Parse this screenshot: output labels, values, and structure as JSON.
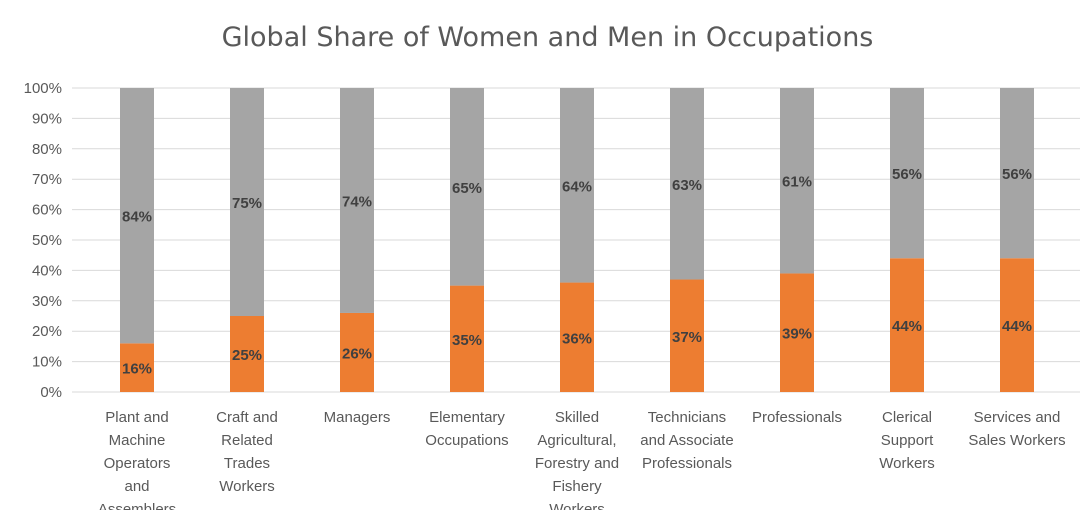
{
  "chart_data": {
    "type": "bar",
    "stacked": true,
    "title": "Global Share of Women and Men in Occupations",
    "ylim": [
      0,
      100
    ],
    "y_ticks": [
      "0%",
      "10%",
      "20%",
      "30%",
      "40%",
      "50%",
      "60%",
      "70%",
      "80%",
      "90%",
      "100%"
    ],
    "grid": true,
    "categories": [
      [
        "Plant and",
        "Machine",
        "Operators",
        "and",
        "Assemblers"
      ],
      [
        "Craft and",
        "Related",
        "Trades",
        "Workers"
      ],
      [
        "Managers"
      ],
      [
        "Elementary",
        "Occupations"
      ],
      [
        "Skilled",
        "Agricultural,",
        "Forestry and",
        "Fishery",
        "Workers"
      ],
      [
        "Technicians",
        "and Associate",
        "Professionals"
      ],
      [
        "Professionals"
      ],
      [
        "Clerical",
        "Support",
        "Workers"
      ],
      [
        "Services and",
        "Sales Workers"
      ]
    ],
    "series": [
      {
        "color": "#ed7d31",
        "values": [
          16,
          25,
          26,
          35,
          36,
          37,
          39,
          44,
          44
        ],
        "labels": [
          "16%",
          "25%",
          "26%",
          "35%",
          "36%",
          "37%",
          "39%",
          "44%",
          "44%"
        ]
      },
      {
        "color": "#a5a5a5",
        "values": [
          84,
          75,
          74,
          65,
          64,
          63,
          61,
          56,
          56
        ],
        "labels": [
          "84%",
          "75%",
          "74%",
          "65%",
          "64%",
          "63%",
          "61%",
          "56%",
          "56%"
        ]
      }
    ],
    "gridline_color": "#d9d9d9"
  }
}
